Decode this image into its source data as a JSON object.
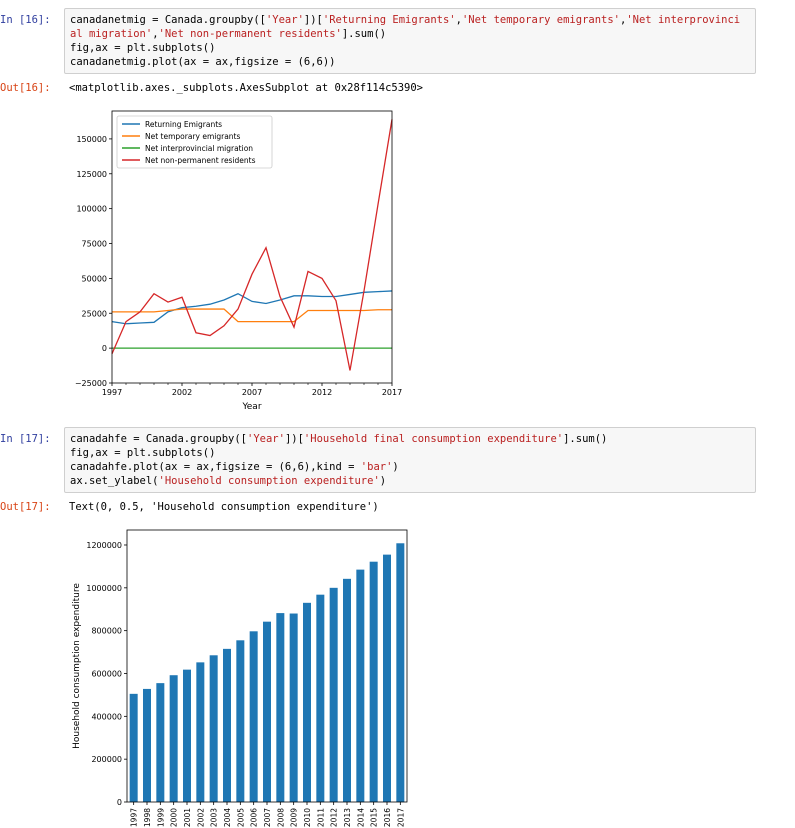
{
  "cells": [
    {
      "in_prompt": "In [16]:",
      "code": [
        [
          {
            "t": "canadanetmig = Canada.groupby(["
          },
          {
            "t": "'Year'",
            "s": 1
          },
          {
            "t": "])["
          },
          {
            "t": "'Returning Emigrants'",
            "s": 1
          },
          {
            "t": ","
          },
          {
            "t": "'Net temporary emigrants'",
            "s": 1
          },
          {
            "t": ","
          },
          {
            "t": "'Net interprovinci",
            "s": 1
          }
        ],
        [
          {
            "t": "al migration'",
            "s": 1
          },
          {
            "t": ","
          },
          {
            "t": "'Net non-permanent residents'",
            "s": 1
          },
          {
            "t": "].sum()"
          }
        ],
        [
          {
            "t": "fig,ax = plt.subplots()"
          }
        ],
        [
          {
            "t": "canadanetmig.plot(ax = ax,figsize = (6,6))"
          }
        ]
      ],
      "out_prompt": "Out[16]:",
      "out_text": "<matplotlib.axes._subplots.AxesSubplot at 0x28f114c5390>"
    },
    {
      "in_prompt": "In [17]:",
      "code": [
        [
          {
            "t": "canadahfe = Canada.groupby(["
          },
          {
            "t": "'Year'",
            "s": 1
          },
          {
            "t": "])["
          },
          {
            "t": "'Household final consumption expenditure'",
            "s": 1
          },
          {
            "t": "].sum()"
          }
        ],
        [
          {
            "t": "fig,ax = plt.subplots()"
          }
        ],
        [
          {
            "t": "canadahfe.plot(ax = ax,figsize = (6,6),kind = "
          },
          {
            "t": "'bar'",
            "s": 1
          },
          {
            "t": ")"
          }
        ],
        [
          {
            "t": "ax.set_ylabel("
          },
          {
            "t": "'Household consumption expenditure'",
            "s": 1
          },
          {
            "t": ")"
          }
        ]
      ],
      "out_prompt": "Out[17]:",
      "out_text": "Text(0, 0.5, 'Household consumption expenditure')"
    }
  ],
  "chart_data": [
    {
      "type": "line",
      "xlabel": "Year",
      "ylabel": "",
      "xlim": [
        1997,
        2017
      ],
      "ylim": [
        -25000,
        170000
      ],
      "xticks": [
        1997,
        2002,
        2007,
        2012,
        2017
      ],
      "yticks": [
        -25000,
        0,
        25000,
        50000,
        75000,
        100000,
        125000,
        150000
      ],
      "legend_position": "top-left",
      "x": [
        1997,
        1998,
        1999,
        2000,
        2001,
        2002,
        2003,
        2004,
        2005,
        2006,
        2007,
        2008,
        2009,
        2010,
        2011,
        2012,
        2013,
        2014,
        2015,
        2016,
        2017
      ],
      "series": [
        {
          "name": "Returning Emigrants",
          "color": "#1f77b4",
          "values": [
            19000,
            17500,
            18000,
            18500,
            26000,
            29000,
            30000,
            31500,
            34500,
            39000,
            33500,
            32000,
            34500,
            37500,
            37500,
            37000,
            37000,
            38500,
            40000,
            40500,
            41000
          ]
        },
        {
          "name": "Net temporary emigrants",
          "color": "#ff7f0e",
          "values": [
            26000,
            26000,
            26000,
            26000,
            27000,
            28000,
            28000,
            28000,
            28000,
            19000,
            19000,
            19000,
            19000,
            19000,
            27000,
            27000,
            27000,
            27000,
            27000,
            27500,
            27500
          ]
        },
        {
          "name": "Net interprovincial migration",
          "color": "#2ca02c",
          "values": [
            0,
            0,
            0,
            0,
            0,
            0,
            0,
            0,
            0,
            0,
            0,
            0,
            0,
            0,
            0,
            0,
            0,
            0,
            0,
            0,
            0
          ]
        },
        {
          "name": "Net non-permanent residents",
          "color": "#d62728",
          "values": [
            -4000,
            19000,
            26000,
            39000,
            33000,
            36500,
            11000,
            9000,
            16000,
            28000,
            53000,
            72000,
            37000,
            15000,
            55000,
            50000,
            34000,
            -16000,
            41000,
            103000,
            164000
          ]
        }
      ]
    },
    {
      "type": "bar",
      "xlabel": "",
      "ylabel": "Household consumption expenditure",
      "ylim": [
        0,
        1270000
      ],
      "yticks": [
        0,
        200000,
        400000,
        600000,
        800000,
        1000000,
        1200000
      ],
      "color": "#1f77b4",
      "categories": [
        "1997",
        "1998",
        "1999",
        "2000",
        "2001",
        "2002",
        "2003",
        "2004",
        "2005",
        "2006",
        "2007",
        "2008",
        "2009",
        "2010",
        "2011",
        "2012",
        "2013",
        "2014",
        "2015",
        "2016",
        "2017"
      ],
      "values": [
        505000,
        528000,
        555000,
        592000,
        618000,
        652000,
        685000,
        715000,
        755000,
        797000,
        842000,
        882000,
        880000,
        930000,
        968000,
        1000000,
        1042000,
        1085000,
        1122000,
        1155000,
        1208000
      ]
    }
  ]
}
